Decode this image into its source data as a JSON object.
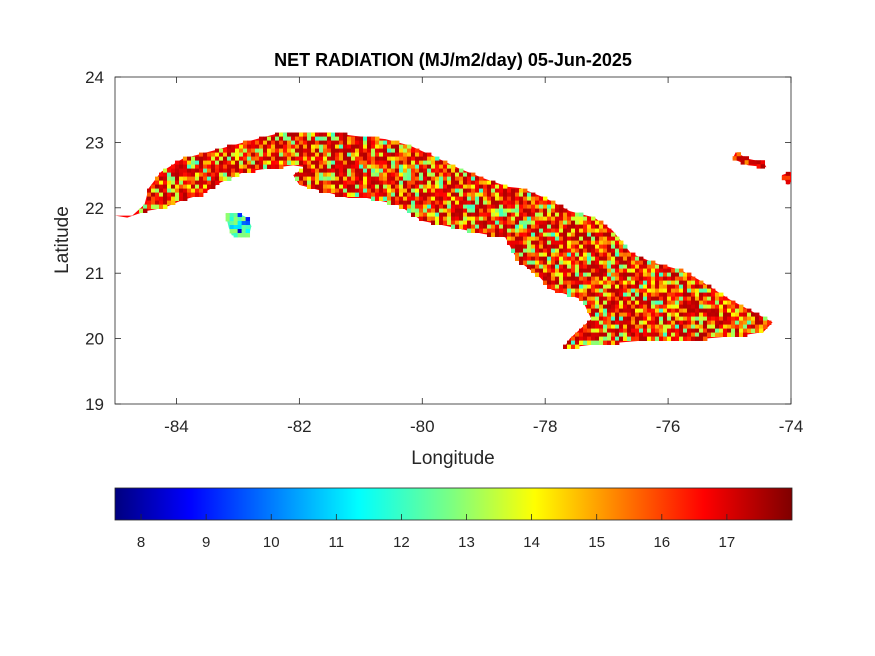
{
  "chart_data": {
    "type": "heatmap",
    "title": "NET RADIATION (MJ/m2/day) 05-Jun-2025",
    "xlabel": "Longitude",
    "ylabel": "Latitude",
    "xlim": [
      -85,
      -74
    ],
    "ylim": [
      19,
      24
    ],
    "xticks": [
      -84,
      -82,
      -80,
      -78,
      -76,
      -74
    ],
    "yticks": [
      19,
      20,
      21,
      22,
      23,
      24
    ],
    "grid": false,
    "colorbar": {
      "placement": "bottom",
      "colormap": "jet",
      "range": [
        7.6,
        18
      ],
      "ticks": [
        8,
        9,
        10,
        11,
        12,
        13,
        14,
        15,
        16,
        17
      ]
    },
    "regions": [
      {
        "name": "western-cuba",
        "value_range": [
          12,
          17.5
        ],
        "outline": [
          [
            -85.0,
            21.88
          ],
          [
            -84.72,
            21.88
          ],
          [
            -84.52,
            22.05
          ],
          [
            -84.45,
            22.3
          ],
          [
            -84.25,
            22.55
          ],
          [
            -83.9,
            22.75
          ],
          [
            -83.5,
            22.85
          ],
          [
            -83.1,
            22.95
          ],
          [
            -82.7,
            23.05
          ],
          [
            -82.3,
            23.15
          ],
          [
            -81.9,
            23.15
          ],
          [
            -81.5,
            23.15
          ],
          [
            -81.1,
            23.1
          ],
          [
            -80.6,
            23.05
          ],
          [
            -80.2,
            22.95
          ],
          [
            -79.8,
            22.78
          ],
          [
            -79.4,
            22.6
          ],
          [
            -79.0,
            22.45
          ],
          [
            -78.6,
            22.32
          ],
          [
            -78.4,
            22.3
          ],
          [
            -78.0,
            22.15
          ],
          [
            -77.6,
            21.95
          ],
          [
            -77.2,
            21.85
          ],
          [
            -76.9,
            21.65
          ],
          [
            -76.6,
            21.3
          ],
          [
            -76.2,
            21.15
          ],
          [
            -75.8,
            21.05
          ],
          [
            -75.5,
            20.9
          ],
          [
            -75.25,
            20.75
          ],
          [
            -75.0,
            20.6
          ],
          [
            -74.6,
            20.4
          ],
          [
            -74.3,
            20.25
          ],
          [
            -74.45,
            20.1
          ],
          [
            -74.8,
            20.05
          ],
          [
            -75.4,
            20.0
          ],
          [
            -75.9,
            20.0
          ],
          [
            -76.3,
            19.98
          ],
          [
            -76.9,
            19.93
          ],
          [
            -77.3,
            19.9
          ],
          [
            -77.7,
            19.85
          ],
          [
            -77.6,
            20.0
          ],
          [
            -77.25,
            20.3
          ],
          [
            -77.4,
            20.6
          ],
          [
            -77.9,
            20.75
          ],
          [
            -78.1,
            20.95
          ],
          [
            -78.45,
            21.2
          ],
          [
            -78.65,
            21.55
          ],
          [
            -79.0,
            21.6
          ],
          [
            -79.5,
            21.7
          ],
          [
            -80.0,
            21.8
          ],
          [
            -80.4,
            22.05
          ],
          [
            -80.9,
            22.15
          ],
          [
            -81.2,
            22.15
          ],
          [
            -81.6,
            22.25
          ],
          [
            -82.0,
            22.35
          ],
          [
            -82.1,
            22.5
          ],
          [
            -81.9,
            22.62
          ],
          [
            -82.1,
            22.65
          ],
          [
            -82.5,
            22.6
          ],
          [
            -82.9,
            22.55
          ],
          [
            -83.3,
            22.38
          ],
          [
            -83.6,
            22.2
          ],
          [
            -83.9,
            22.12
          ],
          [
            -84.2,
            22.0
          ],
          [
            -84.5,
            21.95
          ],
          [
            -84.8,
            21.85
          ],
          [
            -85.0,
            21.88
          ]
        ]
      },
      {
        "name": "isla-de-la-juventud",
        "value_range": [
          8,
          13
        ],
        "outline": [
          [
            -83.2,
            21.9
          ],
          [
            -83.0,
            21.92
          ],
          [
            -82.85,
            21.85
          ],
          [
            -82.78,
            21.72
          ],
          [
            -82.82,
            21.58
          ],
          [
            -82.95,
            21.55
          ],
          [
            -83.1,
            21.58
          ],
          [
            -83.15,
            21.7
          ],
          [
            -83.2,
            21.9
          ]
        ]
      },
      {
        "name": "eastern-keys",
        "value_range": [
          15,
          17.5
        ],
        "outline": [
          [
            -74.9,
            22.85
          ],
          [
            -74.7,
            22.75
          ],
          [
            -74.45,
            22.7
          ],
          [
            -74.4,
            22.62
          ],
          [
            -74.7,
            22.65
          ],
          [
            -74.95,
            22.75
          ],
          [
            -74.9,
            22.85
          ]
        ]
      },
      {
        "name": "east-tip",
        "value_range": [
          15,
          17.5
        ],
        "outline": [
          [
            -74.0,
            22.55
          ],
          [
            -74.15,
            22.5
          ],
          [
            -74.05,
            22.35
          ],
          [
            -74.0,
            22.4
          ],
          [
            -74.0,
            22.55
          ]
        ]
      }
    ]
  }
}
